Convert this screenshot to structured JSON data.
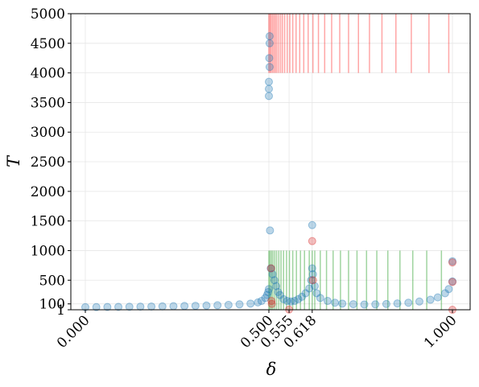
{
  "chart_data": {
    "type": "scatter",
    "xlabel": "δ",
    "ylabel": "T",
    "xlim": [
      -0.045,
      1.045
    ],
    "ylim": [
      1,
      5000
    ],
    "grid": true,
    "x_ticks": [
      0.0,
      0.5,
      0.555,
      0.618,
      1.0
    ],
    "x_tick_labels": [
      "0.000",
      "0.500",
      "0.555",
      "0.618",
      "1.000"
    ],
    "y_ticks": [
      1,
      100,
      500,
      1000,
      1500,
      2000,
      2500,
      3000,
      3500,
      4000,
      4500,
      5000
    ],
    "y_tick_labels": [
      "1",
      "100",
      "500",
      "1000",
      "1500",
      "2000",
      "2500",
      "3000",
      "3500",
      "4000",
      "4500",
      "5000"
    ],
    "colors": {
      "blue": "#1f77b4",
      "red": "#d62728",
      "green": "#2ca02c",
      "red_line": "#ff0000"
    },
    "series": [
      {
        "color": "#1f77b4",
        "points": [
          [
            0.0,
            45
          ],
          [
            0.03,
            46
          ],
          [
            0.06,
            48
          ],
          [
            0.09,
            50
          ],
          [
            0.12,
            52
          ],
          [
            0.15,
            54
          ],
          [
            0.18,
            56
          ],
          [
            0.21,
            59
          ],
          [
            0.24,
            62
          ],
          [
            0.27,
            65
          ],
          [
            0.3,
            68
          ],
          [
            0.33,
            72
          ],
          [
            0.36,
            77
          ],
          [
            0.39,
            83
          ],
          [
            0.42,
            92
          ],
          [
            0.45,
            105
          ],
          [
            0.47,
            125
          ],
          [
            0.48,
            150
          ],
          [
            0.49,
            200
          ],
          [
            0.495,
            250
          ],
          [
            0.498,
            300
          ],
          [
            0.5,
            350
          ],
          [
            0.502,
            4620
          ],
          [
            0.502,
            4500
          ],
          [
            0.501,
            4250
          ],
          [
            0.502,
            4100
          ],
          [
            0.5,
            3850
          ],
          [
            0.5,
            3730
          ],
          [
            0.5,
            3610
          ],
          [
            0.503,
            1340
          ],
          [
            0.505,
            700
          ],
          [
            0.51,
            600
          ],
          [
            0.515,
            500
          ],
          [
            0.52,
            400
          ],
          [
            0.525,
            300
          ],
          [
            0.53,
            250
          ],
          [
            0.54,
            180
          ],
          [
            0.55,
            150
          ],
          [
            0.56,
            140
          ],
          [
            0.57,
            150
          ],
          [
            0.58,
            180
          ],
          [
            0.59,
            220
          ],
          [
            0.6,
            280
          ],
          [
            0.61,
            360
          ],
          [
            0.615,
            500
          ],
          [
            0.618,
            1430
          ],
          [
            0.618,
            700
          ],
          [
            0.62,
            600
          ],
          [
            0.625,
            400
          ],
          [
            0.63,
            280
          ],
          [
            0.64,
            200
          ],
          [
            0.66,
            150
          ],
          [
            0.68,
            120
          ],
          [
            0.7,
            105
          ],
          [
            0.73,
            95
          ],
          [
            0.76,
            90
          ],
          [
            0.79,
            92
          ],
          [
            0.82,
            98
          ],
          [
            0.85,
            108
          ],
          [
            0.88,
            120
          ],
          [
            0.91,
            140
          ],
          [
            0.94,
            170
          ],
          [
            0.96,
            210
          ],
          [
            0.98,
            280
          ],
          [
            0.99,
            350
          ],
          [
            1.0,
            820
          ],
          [
            1.0,
            480
          ]
        ]
      },
      {
        "color": "#d62728",
        "points": [
          [
            0.506,
            700
          ],
          [
            0.507,
            150
          ],
          [
            0.508,
            100
          ],
          [
            0.555,
            5
          ],
          [
            0.618,
            1160
          ],
          [
            0.62,
            500
          ],
          [
            1.0,
            800
          ],
          [
            1.0,
            470
          ],
          [
            1.0,
            1
          ]
        ]
      }
    ],
    "red_vlines": {
      "y_range": [
        4000,
        5000
      ],
      "x": [
        0.5,
        0.503,
        0.506,
        0.51,
        0.514,
        0.518,
        0.522,
        0.527,
        0.532,
        0.537,
        0.543,
        0.55,
        0.557,
        0.565,
        0.574,
        0.584,
        0.595,
        0.607,
        0.62,
        0.635,
        0.652,
        0.671,
        0.693,
        0.717,
        0.744,
        0.774,
        0.808,
        0.846,
        0.888,
        0.936,
        0.99
      ]
    },
    "green_vlines": {
      "y_range": [
        1,
        1000
      ],
      "x": [
        0.5,
        0.503,
        0.507,
        0.511,
        0.516,
        0.521,
        0.527,
        0.533,
        0.54,
        0.548,
        0.556,
        0.565,
        0.575,
        0.586,
        0.597,
        0.61,
        0.618,
        0.625,
        0.64,
        0.657,
        0.675,
        0.695,
        0.717,
        0.74,
        0.766,
        0.794,
        0.824,
        0.857,
        0.892,
        0.93,
        0.97
      ]
    }
  }
}
